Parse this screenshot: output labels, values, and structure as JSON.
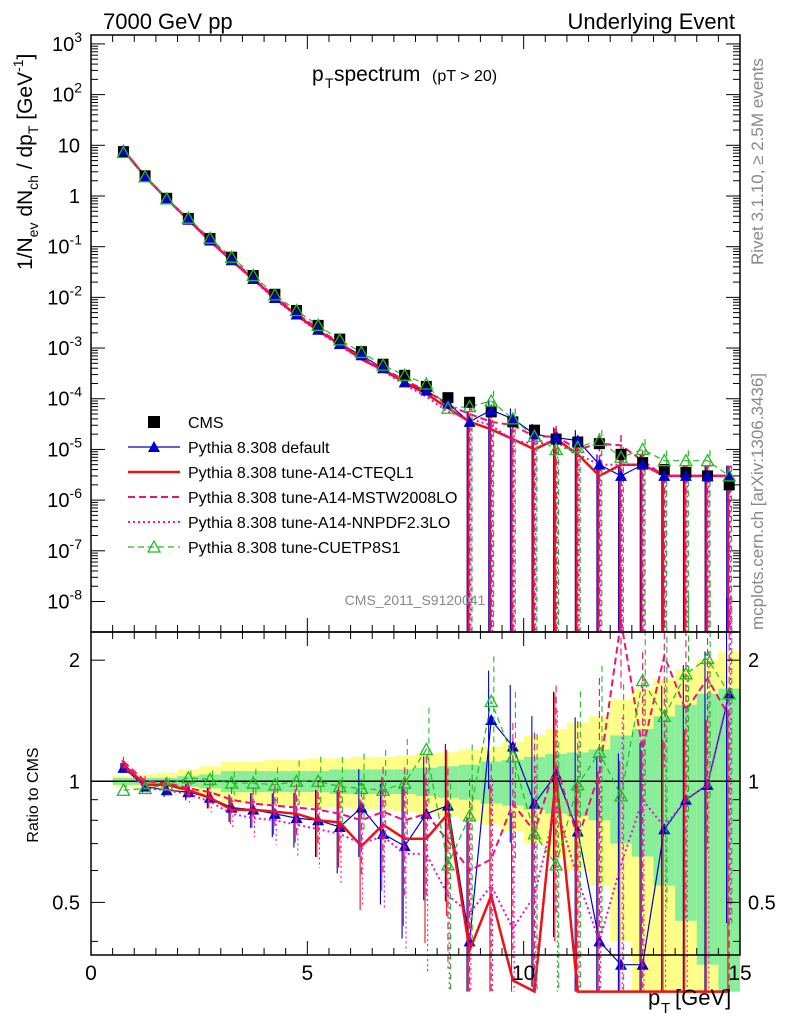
{
  "header": {
    "left": "7000 GeV pp",
    "right": "Underlying Event"
  },
  "side_labels": {
    "rivet": "Rivet 3.1.10, ≥ 2.5M events",
    "mcplots": "mcplots.cern.ch [arXiv:1306.3436]"
  },
  "panel_title": {
    "main": "p",
    "sub": "T",
    "rest": " spectrum",
    "cut": "(pT > 20)"
  },
  "watermark": "CMS_2011_S9120041",
  "colors": {
    "cms": "#000000",
    "default": "#0000cc",
    "cteql1": "#ee1111",
    "mstw": "#ee1177",
    "nnpdf": "#dd11dd",
    "cuetp8s1": "#22bb22",
    "band_yellow": "#ffff88",
    "band_green": "#88ee99"
  },
  "chart_data": [
    {
      "type": "scatter",
      "title": "pT spectrum (pT > 20)",
      "xlabel": "p_T [GeV]",
      "ylabel": "1/N_ev dN_ch / dp_T [GeV^-1]",
      "yscale": "log",
      "xlim": [
        0,
        15
      ],
      "ylim": [
        2.5e-09,
        1500
      ],
      "x": [
        0.75,
        1.25,
        1.75,
        2.25,
        2.75,
        3.25,
        3.75,
        4.25,
        4.75,
        5.25,
        5.75,
        6.25,
        6.75,
        7.25,
        7.75,
        8.25,
        8.75,
        9.25,
        9.75,
        10.25,
        10.75,
        11.25,
        11.75,
        12.25,
        12.75,
        13.25,
        13.75,
        14.25,
        14.75
      ],
      "legend_position": "bottom-left",
      "series": [
        {
          "name": "CMS",
          "marker": "square",
          "values": [
            7.5,
            2.5,
            0.9,
            0.36,
            0.145,
            0.062,
            0.027,
            0.0115,
            0.0055,
            0.0028,
            0.0015,
            0.00085,
            0.00048,
            0.00029,
            0.000175,
            0.000105,
            8.5e-05,
            5.5e-05,
            3.5e-05,
            2.4e-05,
            1.6e-05,
            1.4e-05,
            1.3e-05,
            8e-06,
            5.5e-06,
            4e-06,
            3.5e-06,
            3e-06,
            2e-06
          ]
        },
        {
          "name": "Pythia 8.308 default",
          "marker": "filled-triangle",
          "values": [
            8,
            2.4,
            0.87,
            0.34,
            0.132,
            0.054,
            0.023,
            0.0097,
            0.0046,
            0.0023,
            0.0012,
            0.00072,
            0.0004,
            0.00021,
            0.000145,
            8e-05,
            3.5e-05,
            6e-05,
            4e-05,
            2e-05,
            1.7e-05,
            1.5e-05,
            5e-06,
            3e-06,
            5e-06,
            3e-06,
            3e-06,
            3e-06,
            3e-06
          ]
        },
        {
          "name": "Pythia 8.308 tune-A14-CTEQL1",
          "marker": "solid-line",
          "values": [
            8,
            2.4,
            0.88,
            0.34,
            0.13,
            0.053,
            0.023,
            0.0096,
            0.0045,
            0.0022,
            0.0012,
            0.0006,
            0.00037,
            0.00021,
            0.000125,
            6.5e-05,
            3.5e-05,
            2.5e-05,
            1.6e-05,
            1e-05,
            1.6e-05,
            8e-06,
            3e-06,
            5e-06,
            5e-06,
            3e-06,
            3e-06,
            3e-06,
            3e-06
          ]
        },
        {
          "name": "Pythia 8.308 tune-A14-MSTW2008LO",
          "marker": "dashed-line",
          "values": [
            8.2,
            2.45,
            0.89,
            0.345,
            0.136,
            0.056,
            0.024,
            0.0102,
            0.0049,
            0.0024,
            0.00125,
            0.00068,
            0.0004,
            0.00023,
            0.000145,
            7.5e-05,
            5e-05,
            3.5e-05,
            3e-05,
            1.8e-05,
            1.8e-05,
            1e-05,
            1.3e-05,
            1.2e-05,
            6e-06,
            3e-06,
            3e-06,
            3e-06,
            3e-06
          ]
        },
        {
          "name": "Pythia 8.308 tune-A14-NNPDF2.3LO",
          "marker": "dotted-line",
          "values": [
            8.1,
            2.4,
            0.86,
            0.33,
            0.128,
            0.052,
            0.022,
            0.0092,
            0.0043,
            0.0021,
            0.0011,
            0.0006,
            0.00035,
            0.00019,
            0.00011,
            5.5e-05,
            4e-05,
            3e-05,
            1.5e-05,
            1.3e-05,
            1.4e-05,
            8e-06,
            5e-06,
            5e-06,
            5e-06,
            3e-06,
            3e-06,
            3e-06,
            3e-06
          ]
        },
        {
          "name": "Pythia 8.308 tune-CUETP8S1",
          "marker": "open-triangle",
          "values": [
            7.2,
            2.4,
            0.88,
            0.365,
            0.147,
            0.062,
            0.027,
            0.0112,
            0.0055,
            0.0028,
            0.00145,
            0.00082,
            0.00046,
            0.00029,
            0.000195,
            6.5e-05,
            7e-05,
            9e-05,
            4e-05,
            1.8e-05,
            1e-05,
            1.1e-05,
            1.5e-05,
            7e-06,
            1e-05,
            6e-06,
            6e-06,
            6e-06,
            3e-06
          ]
        }
      ],
      "legend_entries": [
        "CMS",
        "Pythia 8.308 default",
        "Pythia 8.308 tune-A14-CTEQL1",
        "Pythia 8.308 tune-A14-MSTW2008LO",
        "Pythia 8.308 tune-A14-NNPDF2.3LO",
        "Pythia 8.308 tune-CUETP8S1"
      ],
      "yticks": [
        "10^{-8}",
        "10^{-7}",
        "10^{-6}",
        "10^{-5}",
        "10^{-4}",
        "10^{-3}",
        "10^{-2}",
        "10^{-1}",
        "1",
        "10",
        "10^{2}",
        "10^{3}"
      ]
    },
    {
      "type": "line",
      "title": "",
      "xlabel": "p_T [GeV]",
      "ylabel": "Ratio to CMS",
      "xlim": [
        0,
        15
      ],
      "ylim": [
        0.37,
        2.35
      ],
      "xticks": [
        "0",
        "5",
        "10",
        "15"
      ],
      "yticks": [
        "0.5",
        "1",
        "2"
      ],
      "x": [
        0.75,
        1.25,
        1.75,
        2.25,
        2.75,
        3.25,
        3.75,
        4.25,
        4.75,
        5.25,
        5.75,
        6.25,
        6.75,
        7.25,
        7.75,
        8.25,
        8.75,
        9.25,
        9.75,
        10.25,
        10.75,
        11.25,
        11.75,
        12.25,
        12.75,
        13.25,
        13.75,
        14.25,
        14.75
      ],
      "band_inner_half_width": [
        0.02,
        0.02,
        0.02,
        0.03,
        0.04,
        0.06,
        0.06,
        0.06,
        0.06,
        0.06,
        0.07,
        0.07,
        0.07,
        0.07,
        0.08,
        0.09,
        0.1,
        0.12,
        0.13,
        0.15,
        0.17,
        0.18,
        0.2,
        0.3,
        0.35,
        0.45,
        0.55,
        0.65,
        0.7
      ],
      "band_outer_half_width": [
        0.03,
        0.04,
        0.05,
        0.07,
        0.09,
        0.12,
        0.12,
        0.13,
        0.13,
        0.14,
        0.14,
        0.15,
        0.15,
        0.16,
        0.17,
        0.18,
        0.2,
        0.22,
        0.25,
        0.3,
        0.35,
        0.4,
        0.45,
        0.6,
        0.7,
        0.8,
        0.9,
        1.0,
        1.1
      ],
      "series": [
        {
          "name": "Pythia 8.308 default",
          "values": [
            1.08,
            0.97,
            0.95,
            0.94,
            0.91,
            0.86,
            0.85,
            0.83,
            0.81,
            0.8,
            0.77,
            0.86,
            0.74,
            0.69,
            0.83,
            0.87,
            0.4,
            1.42,
            1.22,
            0.88,
            1.04,
            0.75,
            0.4,
            0.35,
            0.35,
            0.76,
            0.9,
            0.98,
            1.65
          ]
        },
        {
          "name": "Pythia 8.308 tune-A14-CTEQL1",
          "values": [
            1.1,
            0.98,
            0.98,
            0.95,
            0.91,
            0.85,
            0.85,
            0.84,
            0.83,
            0.8,
            0.79,
            0.69,
            0.78,
            0.72,
            0.72,
            0.83,
            0.38,
            0.52,
            0.32,
            0.3,
            1.03,
            0.3,
            0.3,
            0.3,
            0.3,
            0.3,
            0.3,
            0.3,
            0.3
          ]
        },
        {
          "name": "Pythia 8.308 tune-A14-MSTW2008LO",
          "values": [
            1.12,
            1.0,
            0.99,
            0.96,
            0.94,
            0.9,
            0.88,
            0.87,
            0.86,
            0.85,
            0.83,
            0.8,
            0.84,
            0.8,
            0.83,
            0.71,
            0.6,
            0.64,
            0.88,
            0.75,
            1.1,
            0.72,
            1.05,
            2.5,
            1.2,
            2.05,
            1.5,
            1.8,
            1.45
          ]
        },
        {
          "name": "Pythia 8.308 tune-A14-NNPDF2.3LO",
          "values": [
            1.09,
            0.96,
            0.95,
            0.93,
            0.89,
            0.83,
            0.81,
            0.8,
            0.78,
            0.76,
            0.74,
            0.7,
            0.73,
            0.66,
            0.66,
            0.52,
            0.47,
            0.55,
            0.43,
            0.52,
            0.87,
            0.57,
            0.4,
            0.62,
            0.9,
            0.77,
            0.9,
            0.98,
            1.65
          ]
        },
        {
          "name": "Pythia 8.308 tune-CUETP8S1",
          "values": [
            0.95,
            0.96,
            0.98,
            1.02,
            1.01,
            0.99,
            0.99,
            0.98,
            1.0,
            1.0,
            0.97,
            0.96,
            0.95,
            0.99,
            1.2,
            0.62,
            0.82,
            1.58,
            1.15,
            0.74,
            0.62,
            0.98,
            1.18,
            0.92,
            1.78,
            1.45,
            1.85,
            2.02,
            1.65
          ]
        }
      ]
    }
  ]
}
